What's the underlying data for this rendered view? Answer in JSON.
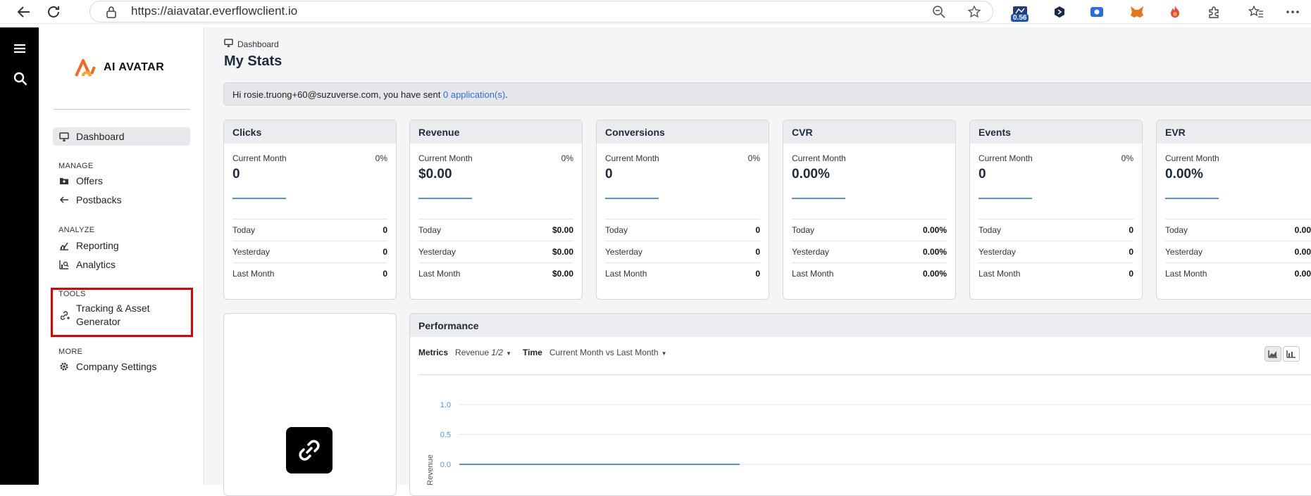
{
  "browser": {
    "url": "https://aiavatar.everflowclient.io",
    "extension_badge": "0.56",
    "icons": [
      "back-arrow-icon",
      "reload-icon",
      "lock-icon",
      "zoom-out-icon",
      "star-icon",
      "extension-icon",
      "puzzle-icon",
      "favorites-icon",
      "more-icon"
    ]
  },
  "sidebar": {
    "logo_text": "AI AVATAR",
    "items": {
      "dashboard": "Dashboard",
      "manage_section": "MANAGE",
      "offers": "Offers",
      "postbacks": "Postbacks",
      "analyze_section": "ANALYZE",
      "reporting": "Reporting",
      "analytics": "Analytics",
      "tools_section": "TOOLS",
      "tracking_line1": "Tracking & Asset",
      "tracking_line2": "Generator",
      "more_section": "MORE",
      "company_settings": "Company Settings"
    },
    "highlight_color": "#e00000"
  },
  "main": {
    "breadcrumb": "Dashboard",
    "title": "My Stats",
    "welcome": {
      "prefix": "Hi rosie.truong+60@suzuverse.com, you have sent ",
      "link": "0 application(s)",
      "suffix": "."
    },
    "cards": [
      {
        "title": "Clicks",
        "cm_label": "Current Month",
        "pct": "0%",
        "value": "0",
        "rows": [
          [
            "Today",
            "0"
          ],
          [
            "Yesterday",
            "0"
          ],
          [
            "Last Month",
            "0"
          ]
        ]
      },
      {
        "title": "Revenue",
        "cm_label": "Current Month",
        "pct": "0%",
        "value": "$0.00",
        "rows": [
          [
            "Today",
            "$0.00"
          ],
          [
            "Yesterday",
            "$0.00"
          ],
          [
            "Last Month",
            "$0.00"
          ]
        ]
      },
      {
        "title": "Conversions",
        "cm_label": "Current Month",
        "pct": "0%",
        "value": "0",
        "rows": [
          [
            "Today",
            "0"
          ],
          [
            "Yesterday",
            "0"
          ],
          [
            "Last Month",
            "0"
          ]
        ]
      },
      {
        "title": "CVR",
        "cm_label": "Current Month",
        "pct": "",
        "value": "0.00%",
        "rows": [
          [
            "Today",
            "0.00%"
          ],
          [
            "Yesterday",
            "0.00%"
          ],
          [
            "Last Month",
            "0.00%"
          ]
        ]
      },
      {
        "title": "Events",
        "cm_label": "Current Month",
        "pct": "0%",
        "value": "0",
        "rows": [
          [
            "Today",
            "0"
          ],
          [
            "Yesterday",
            "0"
          ],
          [
            "Last Month",
            "0"
          ]
        ]
      },
      {
        "title": "EVR",
        "cm_label": "Current Month",
        "pct": "",
        "value": "0.00%",
        "rows": [
          [
            "Today",
            "0.00"
          ],
          [
            "Yesterday",
            "0.00"
          ],
          [
            "Last Month",
            "0.00"
          ]
        ]
      }
    ],
    "performance": {
      "title": "Performance",
      "metrics_label": "Metrics",
      "metrics_value": "Revenue",
      "metrics_page": "1/2",
      "time_label": "Time",
      "time_value": "Current Month vs Last Month"
    }
  },
  "chart_data": {
    "type": "line",
    "ylabel": "Revenue",
    "yticks": [
      "1.0",
      "0.5",
      "0.0"
    ],
    "ylim": [
      0,
      1
    ],
    "series": [
      {
        "values": [
          0,
          0
        ]
      }
    ],
    "color": "#4f93e8",
    "grid": true
  }
}
